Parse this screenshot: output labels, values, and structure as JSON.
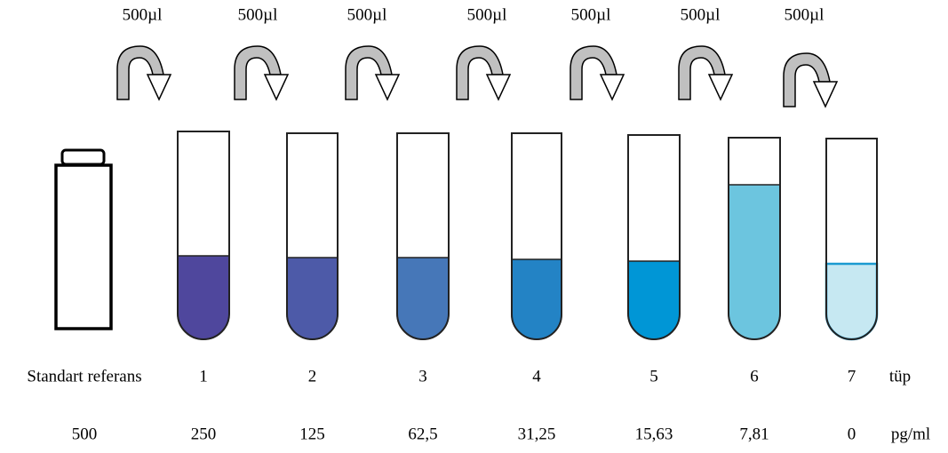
{
  "transfers": [
    "500µl",
    "500µl",
    "500µl",
    "500µl",
    "500µl",
    "500µl",
    "500µl"
  ],
  "reference": {
    "label": "Standart referans",
    "concentration": "500"
  },
  "tubes": [
    {
      "number": "1",
      "concentration": "250"
    },
    {
      "number": "2",
      "concentration": "125"
    },
    {
      "number": "3",
      "concentration": "62,5"
    },
    {
      "number": "4",
      "concentration": "31,25"
    },
    {
      "number": "5",
      "concentration": "15,63"
    },
    {
      "number": "6",
      "concentration": "7,81"
    },
    {
      "number": "7",
      "concentration": "0"
    }
  ],
  "tube_unit": "tüp",
  "concentration_unit": "pg/ml"
}
